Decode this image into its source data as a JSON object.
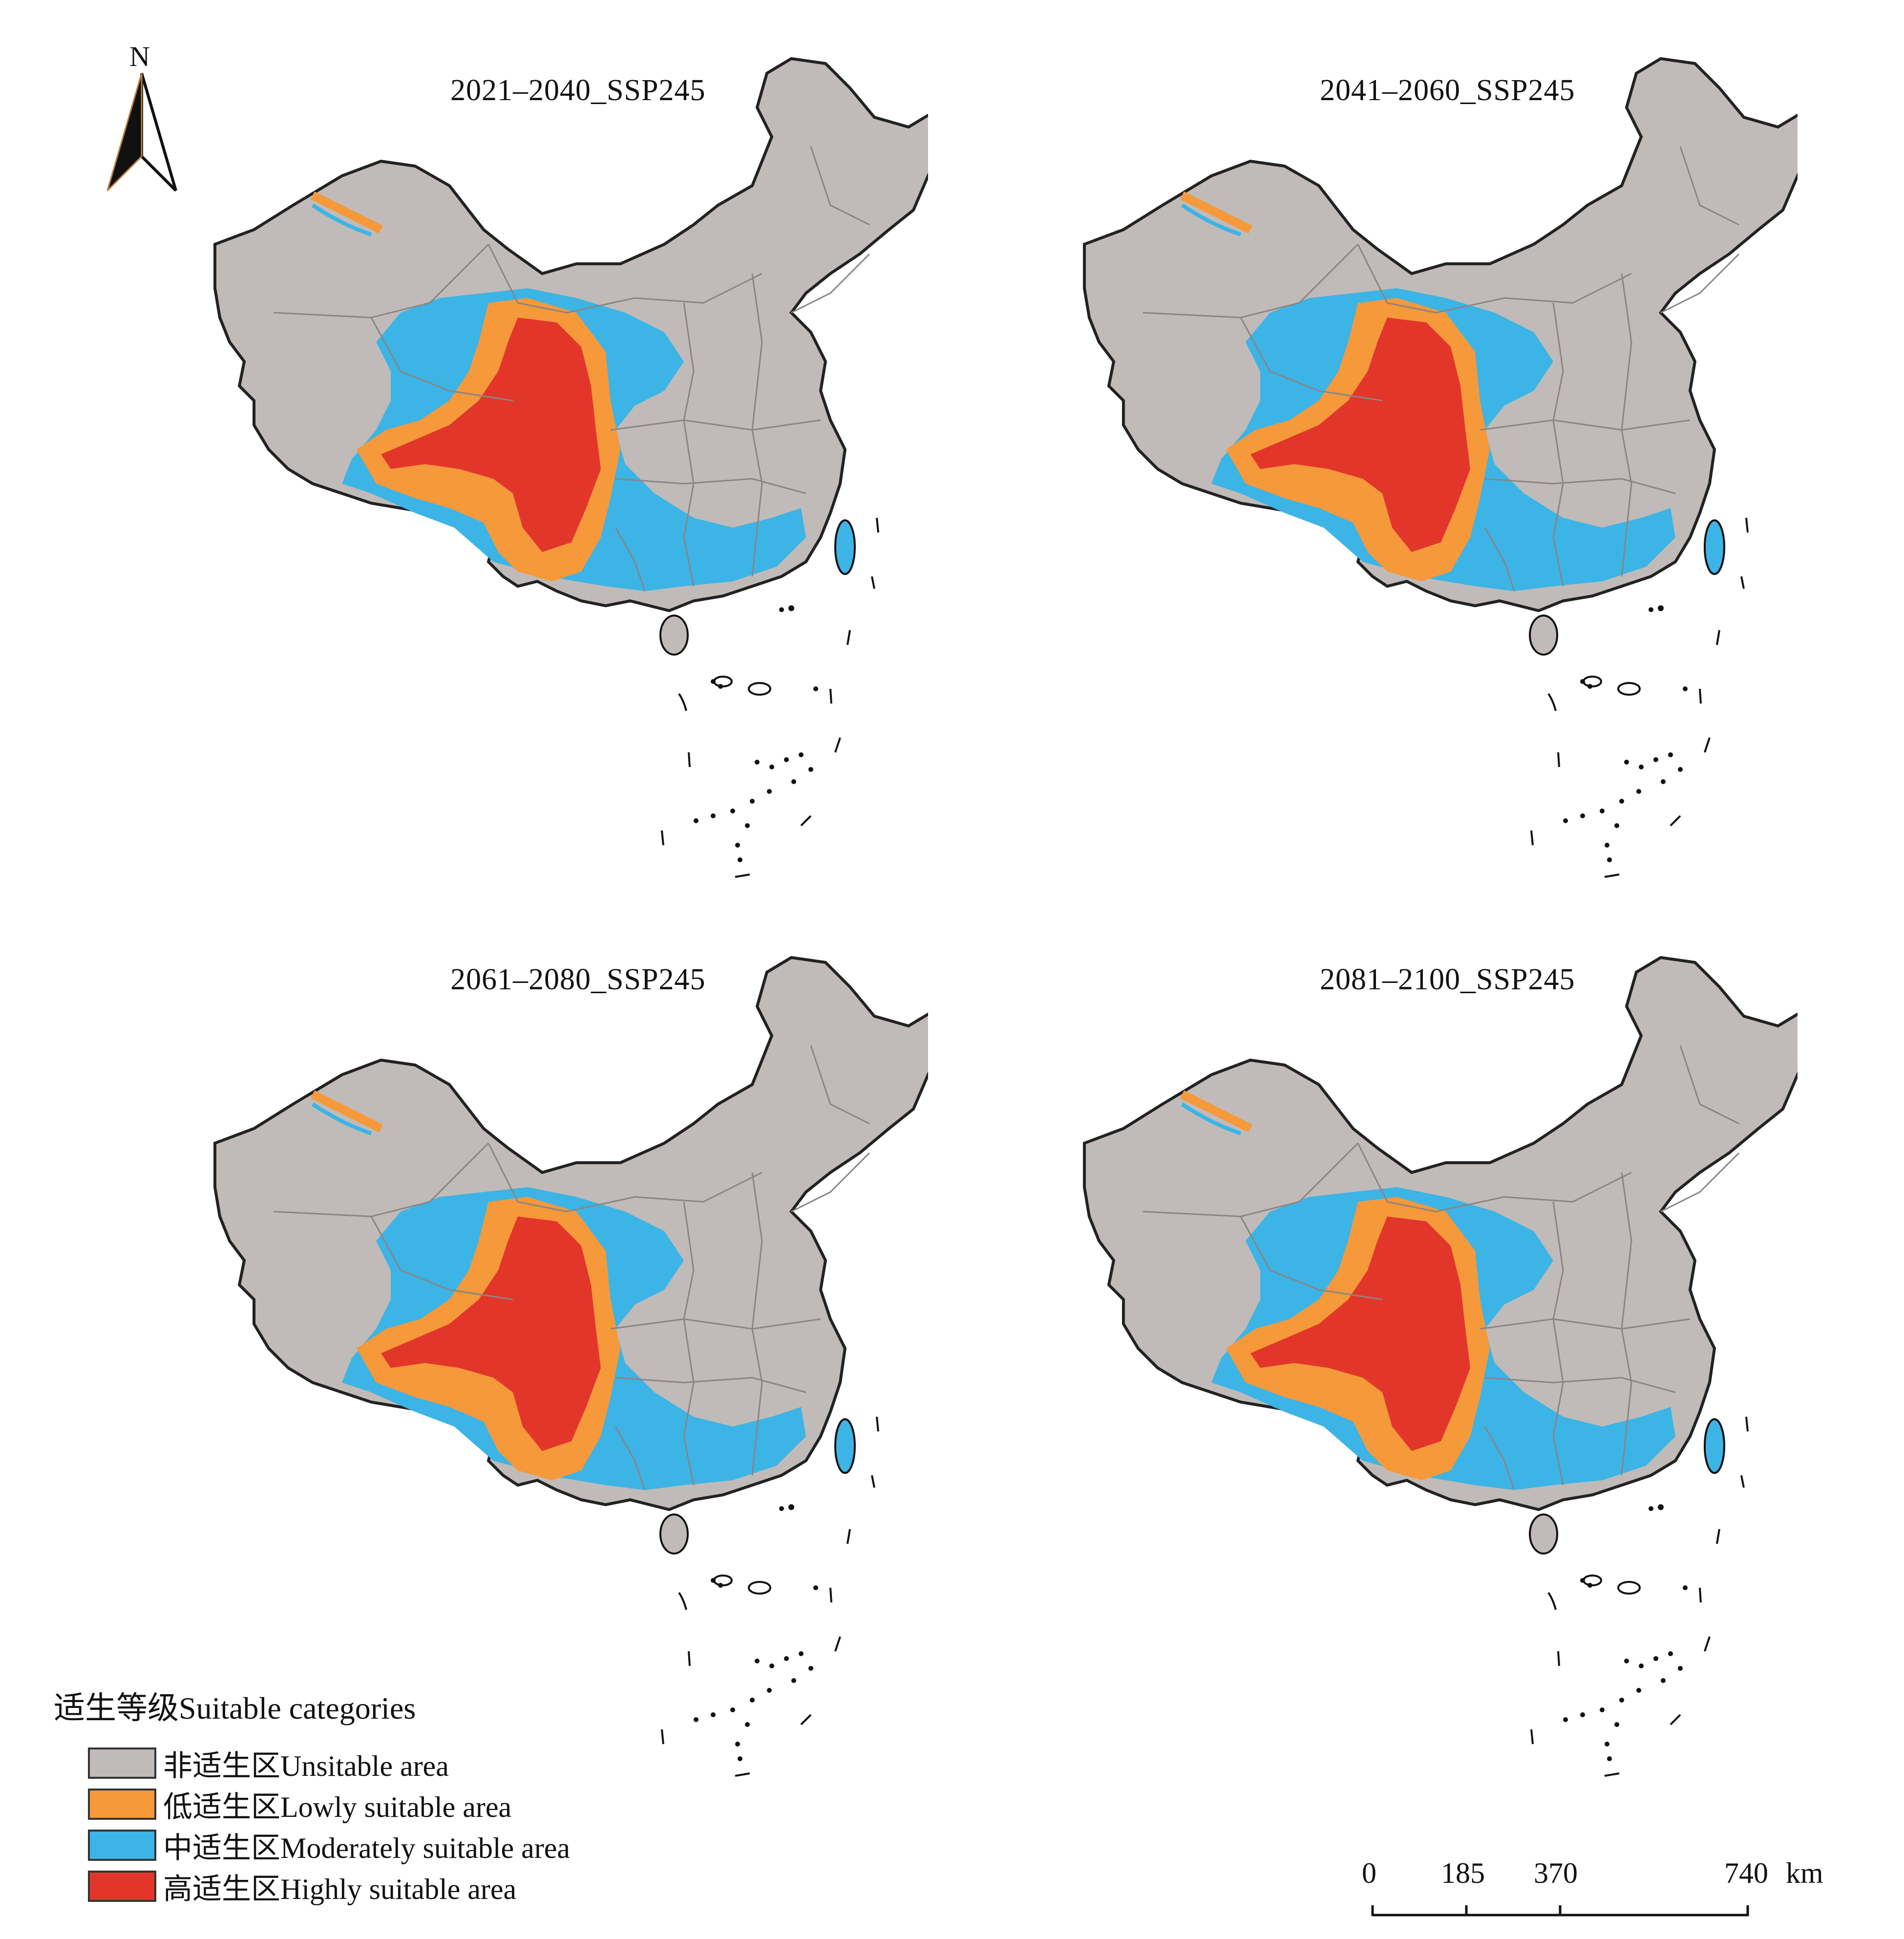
{
  "panels": [
    {
      "title": "2021–2040_SSP245"
    },
    {
      "title": "2041–2060_SSP245"
    },
    {
      "title": "2061–2080_SSP245"
    },
    {
      "title": "2081–2100_SSP245"
    }
  ],
  "north_arrow": {
    "label": "N"
  },
  "legend": {
    "title": "适生等级Suitable categories",
    "items": [
      {
        "label": "非适生区Unsitable area",
        "color": "#c0bbb8"
      },
      {
        "label": "低适生区Lowly suitable area",
        "color": "#f5993a"
      },
      {
        "label": "中适生区Moderately suitable area",
        "color": "#3cb4e6"
      },
      {
        "label": "高适生区Highly suitable area",
        "color": "#e3362b"
      }
    ]
  },
  "scale_bar": {
    "ticks": [
      "0",
      "185",
      "370",
      "740"
    ],
    "unit": "km"
  }
}
